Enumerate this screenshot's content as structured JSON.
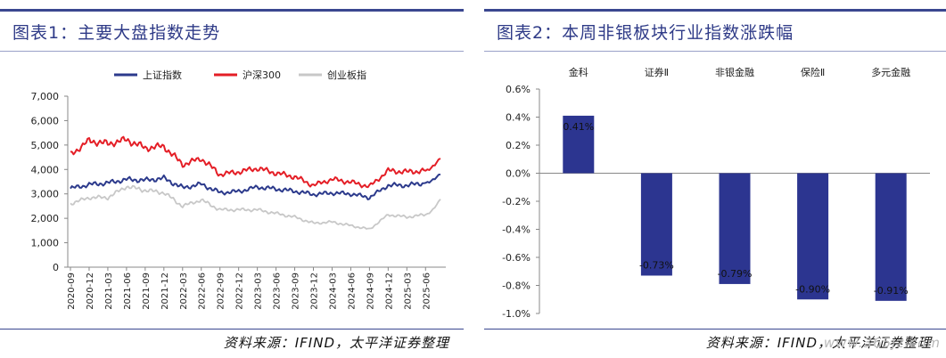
{
  "left_panel": {
    "title": "图表1：主要大盘指数走势",
    "source": "资料来源：IFIND，太平洋证券整理"
  },
  "right_panel": {
    "title": "图表2：本周非银板块行业指数涨跌幅",
    "source": "资料来源：IFIND，太平洋证券整理"
  },
  "watermark": "www.365jz.com",
  "colors": {
    "title": "#2e3a87",
    "sse": "#2c3a8c",
    "csi300": "#e41e26",
    "chinext": "#c8c8c8",
    "bar": "#2c3590"
  },
  "chart_data": [
    {
      "type": "line",
      "title": "",
      "xlabel": "",
      "ylabel": "",
      "ylim": [
        0,
        7000
      ],
      "yticks": [
        "0",
        "1,000",
        "2,000",
        "3,000",
        "4,000",
        "5,000",
        "6,000",
        "7,000"
      ],
      "x": [
        "2020-09",
        "2020-12",
        "2021-03",
        "2021-06",
        "2021-09",
        "2021-12",
        "2022-03",
        "2022-06",
        "2022-09",
        "2022-12",
        "2023-03",
        "2023-06",
        "2023-09",
        "2023-12",
        "2024-03",
        "2024-06",
        "2024-09",
        "2024-12",
        "2025-03",
        "2025-06"
      ],
      "legend_position": "top",
      "grid": false,
      "series": [
        {
          "name": "上证指数",
          "color": "#2c3a8c",
          "values": [
            3220,
            3380,
            3450,
            3590,
            3560,
            3640,
            3250,
            3400,
            3050,
            3100,
            3280,
            3200,
            3110,
            2980,
            3040,
            3000,
            2850,
            3350,
            3350,
            3450
          ]
        },
        {
          "name": "沪深300",
          "color": "#e41e26",
          "values": [
            4600,
            5180,
            5050,
            5220,
            4880,
            4950,
            4200,
            4450,
            3800,
            3900,
            4050,
            3850,
            3700,
            3350,
            3600,
            3480,
            3300,
            3950,
            3900,
            3950
          ]
        },
        {
          "name": "创业板指",
          "color": "#c8c8c8",
          "values": [
            2600,
            2850,
            2850,
            3300,
            3150,
            3050,
            2500,
            2750,
            2350,
            2350,
            2350,
            2200,
            2050,
            1800,
            1850,
            1700,
            1550,
            2150,
            2050,
            2150
          ]
        }
      ],
      "end": {
        "sse": 3830,
        "csi300": 4480,
        "chinext": 2800
      }
    },
    {
      "type": "bar",
      "title": "",
      "xlabel": "",
      "ylabel": "",
      "ylim": [
        -1.0,
        0.6
      ],
      "yticks": [
        "0.6%",
        "0.4%",
        "0.2%",
        "0.0%",
        "-0.2%",
        "-0.4%",
        "-0.6%",
        "-0.8%",
        "-1.0%"
      ],
      "categories": [
        "金科",
        "证券Ⅱ",
        "非银金融",
        "保险Ⅱ",
        "多元金融"
      ],
      "values": [
        0.41,
        -0.73,
        -0.79,
        -0.9,
        -0.91
      ],
      "labels": [
        "0.41%",
        "-0.73%",
        "-0.79%",
        "-0.90%",
        "-0.91%"
      ]
    }
  ]
}
